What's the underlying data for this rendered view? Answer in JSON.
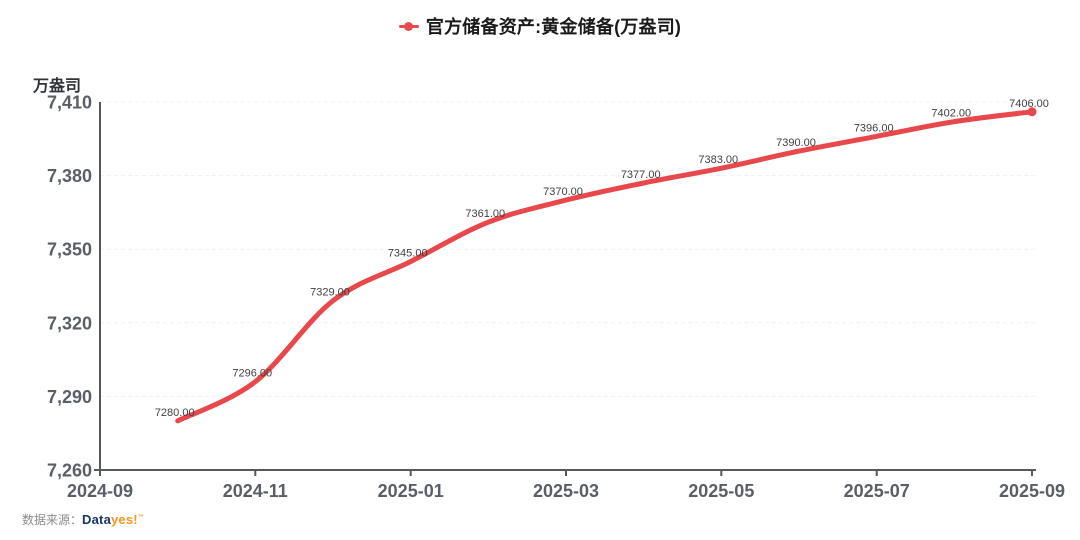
{
  "chart_data": {
    "type": "line",
    "title": "官方储备资产:黄金储备(万盎司)",
    "ylabel": "万盎司",
    "x": [
      "2024-10",
      "2024-11",
      "2024-12",
      "2025-01",
      "2025-02",
      "2025-03",
      "2025-04",
      "2025-05",
      "2025-06",
      "2025-07",
      "2025-08",
      "2025-09"
    ],
    "values": [
      7280,
      7296,
      7329,
      7345,
      7361,
      7370,
      7377,
      7383,
      7390,
      7396,
      7402,
      7406
    ],
    "point_labels": [
      "7280.00",
      "7296.00",
      "7329.00",
      "7345.00",
      "7361.00",
      "7370.00",
      "7377.00",
      "7383.00",
      "7390.00",
      "7396.00",
      "7402.00",
      "7406.00"
    ],
    "x_axis_domain": [
      "2024-09",
      "2025-09"
    ],
    "x_tick_labels": [
      "2024-09",
      "2024-11",
      "2025-01",
      "2025-03",
      "2025-05",
      "2025-07",
      "2025-09"
    ],
    "y_tick_labels": [
      "7,410",
      "7,380",
      "7,350",
      "7,320",
      "7,290",
      "7,260"
    ],
    "ylim": [
      7260,
      7410
    ],
    "y_tick_step": 30,
    "grid": true,
    "smooth": true,
    "legend_position": "top-center",
    "line_color": "#e8484b",
    "axis_color": "#55585f",
    "grid_color": "#f1f1f2"
  },
  "footer": {
    "source_label": "数据来源：",
    "brand_data": "Data",
    "brand_yes": "yes!",
    "brand_mark": "™"
  }
}
